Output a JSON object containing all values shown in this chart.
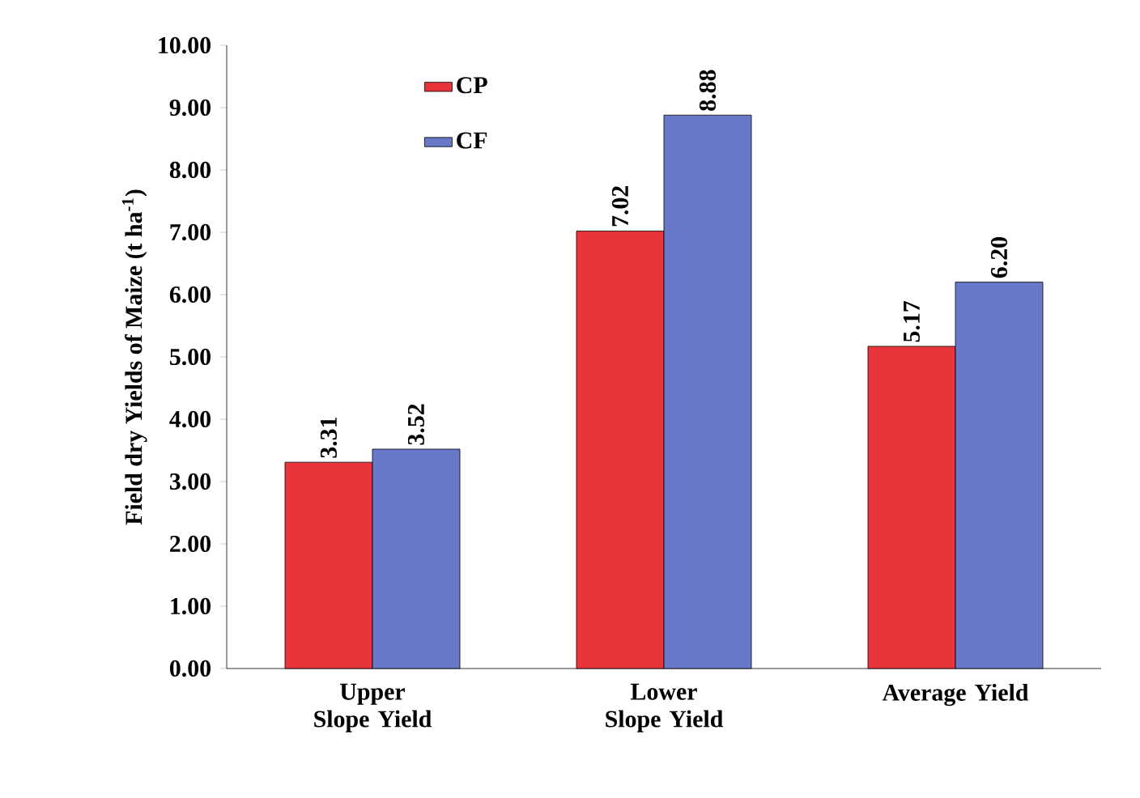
{
  "chart_data": {
    "type": "bar",
    "ylabel": "Field dry Yields of Maize (t ha$^{-1}$)",
    "categories": [
      "Upper Slope Yield",
      "Lower Slope Yield",
      "Average Yield"
    ],
    "series": [
      {
        "name": "CP",
        "color": "#e8343a",
        "values": [
          3.31,
          7.02,
          5.17
        ],
        "value_labels": [
          "3.31",
          "7.02",
          "5.17"
        ]
      },
      {
        "name": "CF",
        "color": "#6a78c8",
        "values": [
          3.52,
          8.88,
          6.2
        ],
        "value_labels": [
          "3.52",
          "8.88",
          "6.20"
        ]
      }
    ],
    "ylim": [
      0,
      10
    ],
    "yticks": [
      {
        "value": 0,
        "label": "0.00"
      },
      {
        "value": 1,
        "label": "1.00"
      },
      {
        "value": 2,
        "label": "2.00"
      },
      {
        "value": 3,
        "label": "3.00"
      },
      {
        "value": 4,
        "label": "4.00"
      },
      {
        "value": 5,
        "label": "5.00"
      },
      {
        "value": 6,
        "label": "6.00"
      },
      {
        "value": 7,
        "label": "7.00"
      },
      {
        "value": 8,
        "label": "8.00"
      },
      {
        "value": 9,
        "label": "9.00"
      },
      {
        "value": 10,
        "label": "10.00"
      }
    ],
    "grid": false,
    "legend": "top left"
  }
}
